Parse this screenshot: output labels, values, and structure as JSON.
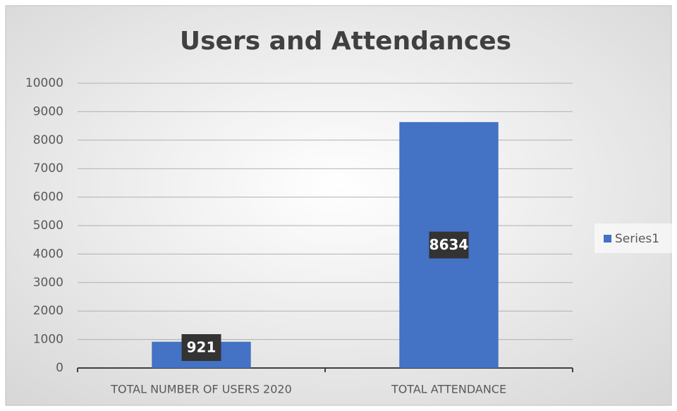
{
  "chart_data": {
    "type": "bar",
    "title": "Users and Attendances",
    "categories": [
      "TOTAL NUMBER OF USERS 2020",
      "TOTAL ATTENDANCE"
    ],
    "series": [
      {
        "name": "Series1",
        "color": "#4472c4",
        "values": [
          921,
          8634
        ]
      }
    ],
    "ylim": [
      0,
      10000
    ],
    "yticks": [
      0,
      1000,
      2000,
      3000,
      4000,
      5000,
      6000,
      7000,
      8000,
      9000,
      10000
    ],
    "grid": true,
    "legend": "right",
    "data_labels": true
  }
}
